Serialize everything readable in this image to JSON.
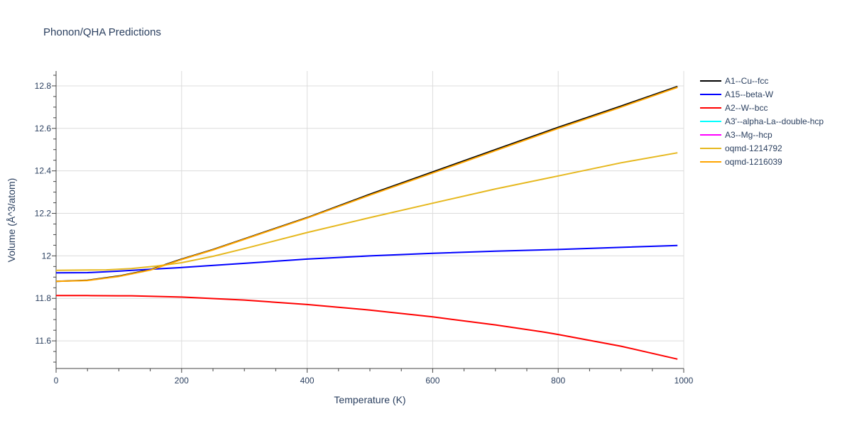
{
  "chart_data": {
    "type": "line",
    "title": "Phonon/QHA Predictions",
    "xlabel": "Temperature (K)",
    "ylabel": "Volume (Å^3/atom)",
    "xlim": [
      0,
      1000
    ],
    "ylim": [
      11.47,
      12.87
    ],
    "x_ticks": [
      0,
      200,
      400,
      600,
      800,
      1000
    ],
    "y_ticks": [
      11.6,
      11.8,
      12.0,
      12.2,
      12.4,
      12.6,
      12.8
    ],
    "x_tick_labels": [
      "0",
      "200",
      "400",
      "600",
      "800",
      "1000"
    ],
    "y_tick_labels": [
      "11.6",
      "11.8",
      "12",
      "12.2",
      "12.4",
      "12.6",
      "12.8"
    ],
    "grid": true,
    "legend_position": "right",
    "series": [
      {
        "name": "A1--Cu--fcc",
        "color": "#000000",
        "x": [
          0,
          50,
          100,
          150,
          200,
          250,
          300,
          400,
          500,
          600,
          700,
          800,
          900,
          990
        ],
        "y": [
          11.88,
          11.885,
          11.905,
          11.935,
          11.985,
          12.03,
          12.08,
          12.18,
          12.29,
          12.395,
          12.5,
          12.605,
          12.705,
          12.797
        ]
      },
      {
        "name": "A15--beta-W",
        "color": "#0000ff",
        "x": [
          0,
          50,
          100,
          150,
          200,
          300,
          400,
          500,
          600,
          700,
          800,
          900,
          990
        ],
        "y": [
          11.92,
          11.921,
          11.928,
          11.937,
          11.945,
          11.965,
          11.985,
          12.0,
          12.012,
          12.022,
          12.03,
          12.04,
          12.049
        ]
      },
      {
        "name": "A2--W--bcc",
        "color": "#ff0000",
        "x": [
          0,
          50,
          100,
          120,
          200,
          300,
          400,
          500,
          600,
          700,
          780,
          800,
          900,
          990
        ],
        "y": [
          11.813,
          11.813,
          11.812,
          11.812,
          11.806,
          11.792,
          11.771,
          11.745,
          11.713,
          11.675,
          11.64,
          11.63,
          11.575,
          11.514
        ]
      },
      {
        "name": "A3'--alpha-La--double-hcp",
        "color": "#00ffff",
        "x": [],
        "y": []
      },
      {
        "name": "A3--Mg--hcp",
        "color": "#ff00ff",
        "x": [],
        "y": []
      },
      {
        "name": "oqmd-1214792",
        "color": "#e6b81e",
        "x": [
          0,
          80,
          120,
          160,
          200,
          250,
          300,
          400,
          500,
          600,
          700,
          800,
          900,
          990
        ],
        "y": [
          11.932,
          11.934,
          11.94,
          11.952,
          11.968,
          11.998,
          12.034,
          12.11,
          12.18,
          12.248,
          12.315,
          12.376,
          12.438,
          12.485
        ]
      },
      {
        "name": "oqmd-1216039",
        "color": "#ffa500",
        "x": [
          0,
          50,
          100,
          150,
          200,
          250,
          300,
          400,
          500,
          600,
          700,
          800,
          900,
          990
        ],
        "y": [
          11.88,
          11.884,
          11.903,
          11.933,
          11.983,
          12.028,
          12.078,
          12.178,
          12.286,
          12.39,
          12.495,
          12.6,
          12.7,
          12.793
        ]
      }
    ]
  }
}
